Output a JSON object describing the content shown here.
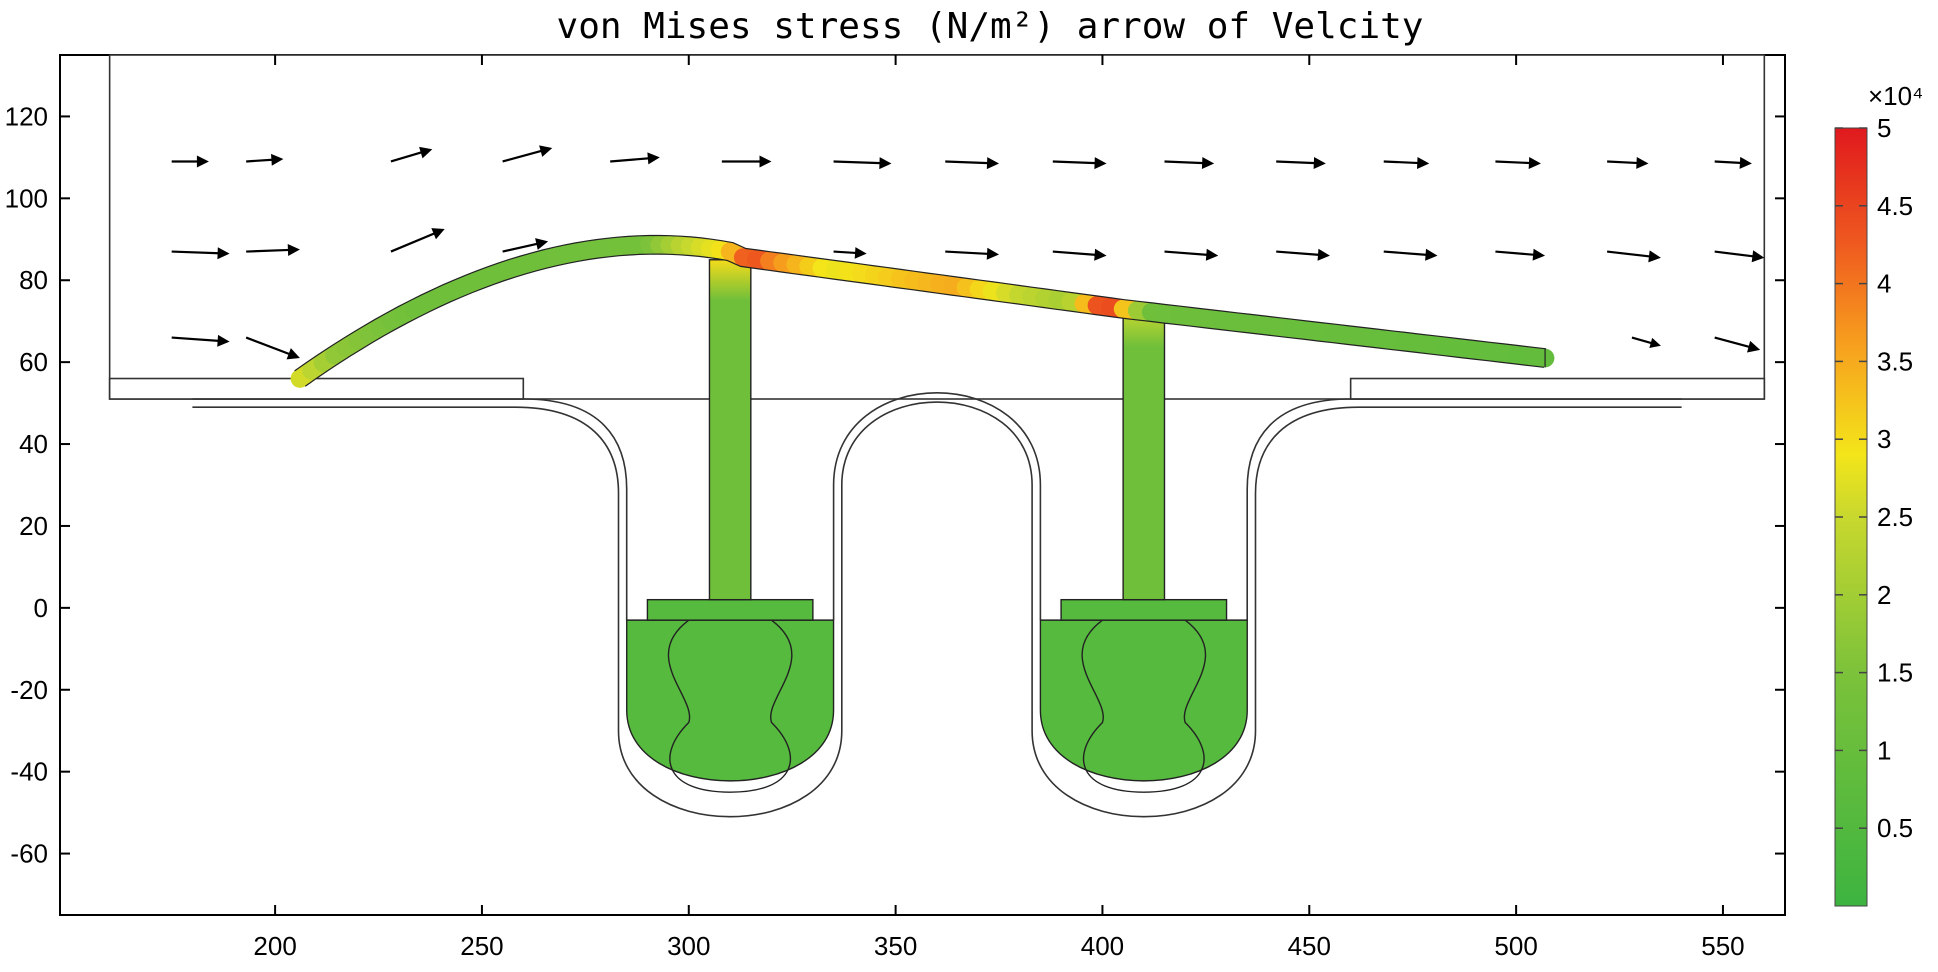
{
  "chart_data": {
    "type": "field-plot",
    "title": "von Mises stress (N/m²)  arrow of Velcity",
    "xlabel": "",
    "ylabel": "",
    "xlim": [
      148,
      565
    ],
    "ylim": [
      -75,
      135
    ],
    "x_ticks": [
      200,
      250,
      300,
      350,
      400,
      450,
      500,
      550
    ],
    "y_ticks": [
      120,
      100,
      80,
      60,
      40,
      20,
      0,
      -20,
      -40,
      -60
    ],
    "grid": false,
    "colorbar": {
      "quantity": "von Mises stress",
      "exponent_label": "×10⁴",
      "range": [
        0,
        5
      ],
      "ticks": [
        "5",
        "4.5",
        "4",
        "3.5",
        "3",
        "2.5",
        "2",
        "1.5",
        "1",
        "0.5"
      ],
      "tick_values": [
        5,
        4.5,
        4,
        3.5,
        3,
        2.5,
        2,
        1.5,
        1,
        0.5
      ],
      "colors": [
        "#3db440",
        "#7cc23a",
        "#c8d82e",
        "#f3e51a",
        "#f7a01e",
        "#ef5a1f",
        "#e0191e"
      ],
      "color_stops": [
        0,
        0.3,
        0.5,
        0.58,
        0.72,
        0.85,
        1
      ]
    },
    "fluid_domain": {
      "x": [
        160,
        560
      ],
      "y": [
        51,
        135
      ]
    },
    "arrow_rows": [
      {
        "y": 109,
        "x_start": [
          175,
          193,
          228,
          255,
          281,
          308,
          335,
          362,
          388,
          415,
          442,
          468,
          495,
          522,
          548
        ],
        "dx": [
          9,
          9,
          10,
          12,
          12,
          12,
          14,
          13,
          13,
          12,
          12,
          11,
          11,
          10,
          9
        ],
        "dy": [
          0,
          0.6,
          3,
          3.3,
          1,
          0,
          -0.5,
          -0.5,
          -0.5,
          -0.5,
          -0.5,
          -0.5,
          -0.5,
          -0.5,
          -0.5
        ]
      },
      {
        "y": 87,
        "x_start": [
          175,
          193,
          228,
          255,
          335,
          362,
          388,
          415,
          442,
          468,
          495,
          522,
          548
        ],
        "dx": [
          14,
          13,
          13,
          11,
          8,
          13,
          13,
          13,
          13,
          13,
          12,
          13,
          12
        ],
        "dy": [
          -0.5,
          0.5,
          5.5,
          2.5,
          -0.5,
          -0.7,
          -1,
          -1,
          -1,
          -1,
          -1,
          -1.5,
          -1.5
        ]
      },
      {
        "y": 66,
        "x_start": [
          175,
          193,
          528,
          548
        ],
        "dx": [
          14,
          13,
          7,
          11
        ],
        "dy": [
          -1,
          -5,
          -2,
          -3
        ]
      }
    ],
    "beam": {
      "arch_start": [
        206,
        56
      ],
      "arch_control": [
        262,
        96
      ],
      "arch_end": [
        310,
        87
      ],
      "deck_points": [
        [
          310,
          86
        ],
        [
          405,
          73
        ],
        [
          507,
          61
        ]
      ],
      "thickness": 4.5,
      "stress_samples": [
        {
          "x": 208,
          "value": 2.6
        },
        {
          "x": 215,
          "value": 1.8
        },
        {
          "x": 235,
          "value": 1.2
        },
        {
          "x": 260,
          "value": 1.2
        },
        {
          "x": 290,
          "value": 1.3
        },
        {
          "x": 300,
          "value": 2.4
        },
        {
          "x": 310,
          "value": 3.0
        },
        {
          "x": 316,
          "value": 4.5
        },
        {
          "x": 322,
          "value": 3.8
        },
        {
          "x": 335,
          "value": 2.8
        },
        {
          "x": 355,
          "value": 3.3
        },
        {
          "x": 365,
          "value": 3.5
        },
        {
          "x": 380,
          "value": 2.5
        },
        {
          "x": 393,
          "value": 2.0
        },
        {
          "x": 402,
          "value": 4.9
        },
        {
          "x": 406,
          "value": 3.5
        },
        {
          "x": 412,
          "value": 1.2
        },
        {
          "x": 430,
          "value": 1.1
        },
        {
          "x": 470,
          "value": 1.0
        },
        {
          "x": 507,
          "value": 0.9
        }
      ]
    },
    "pillars": [
      {
        "x": [
          305,
          315
        ],
        "y": [
          2,
          85
        ],
        "base_plate": {
          "x": [
            290,
            330
          ],
          "y": [
            -3,
            2
          ]
        },
        "stress_top": 3.0,
        "stress_body": 1.2
      },
      {
        "x": [
          405,
          415
        ],
        "y": [
          2,
          72
        ],
        "base_plate": {
          "x": [
            390,
            430
          ],
          "y": [
            -3,
            2
          ]
        },
        "stress_top": 2.4,
        "stress_body": 1.2
      }
    ],
    "reservoirs": [
      {
        "center_x": 310,
        "x": [
          285,
          335
        ],
        "top": -3,
        "bottom": -46,
        "stress": 0.6
      },
      {
        "center_x": 410,
        "x": [
          385,
          435
        ],
        "top": -3,
        "bottom": -46,
        "stress": 0.6
      }
    ]
  }
}
